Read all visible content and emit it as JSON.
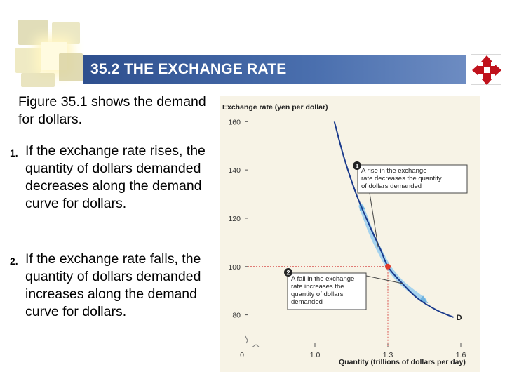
{
  "header": {
    "title": "35.2 THE EXCHANGE RATE"
  },
  "text": {
    "intro": "Figure 35.1 shows the demand for dollars.",
    "points": [
      {
        "num": "1.",
        "text": "If the exchange rate rises, the quantity of dollars demanded decreases along the demand curve for dollars."
      },
      {
        "num": "2.",
        "text": "If the exchange rate falls, the quantity of dollars demanded increases along the demand curve for dollars."
      }
    ]
  },
  "colors": {
    "title_bar": "#3d60a0",
    "curve": "#1a3a8c",
    "highlight": "#9ccfee",
    "point": "#e03a2a",
    "guide": "#d9534f",
    "panel": "#f7f3e6"
  },
  "icons": {
    "nav": "four-arrow-cross-icon"
  },
  "chart_data": {
    "type": "line",
    "title": "",
    "ylabel": "Exchange rate (yen per dollar)",
    "xlabel": "Quantity (trillions of dollars per day)",
    "x_ticks": [
      {
        "value": 0.7,
        "label": "0"
      },
      {
        "value": 1.0,
        "label": "1.0"
      },
      {
        "value": 1.3,
        "label": "1.3"
      },
      {
        "value": 1.6,
        "label": "1.6"
      }
    ],
    "y_ticks": [
      {
        "value": 80,
        "label": "80"
      },
      {
        "value": 100,
        "label": "100"
      },
      {
        "value": 120,
        "label": "120"
      },
      {
        "value": 140,
        "label": "140"
      },
      {
        "value": 160,
        "label": "160"
      }
    ],
    "xlim": [
      0.7,
      1.6
    ],
    "ylim": [
      70,
      163
    ],
    "series": [
      {
        "name": "D",
        "x": [
          1.08,
          1.12,
          1.17,
          1.22,
          1.27,
          1.3,
          1.35,
          1.42,
          1.5,
          1.57
        ],
        "y": [
          160,
          145,
          130,
          118,
          107,
          100,
          94,
          87,
          82,
          79
        ]
      }
    ],
    "highlight_up": {
      "x": [
        1.3,
        1.24,
        1.19
      ],
      "y": [
        100,
        112,
        125
      ]
    },
    "highlight_down": {
      "x": [
        1.3,
        1.36,
        1.45
      ],
      "y": [
        100,
        93,
        86
      ]
    },
    "equilibrium": {
      "x": 1.3,
      "y": 100
    },
    "annotations": [
      {
        "num": "1",
        "lines": [
          "A rise in the exchange",
          "rate decreases the quantity",
          "of dollars demanded"
        ]
      },
      {
        "num": "2",
        "lines": [
          "A fall in the exchange",
          "rate increases the",
          "quantity of dollars",
          "demanded"
        ]
      }
    ],
    "grid": false
  }
}
